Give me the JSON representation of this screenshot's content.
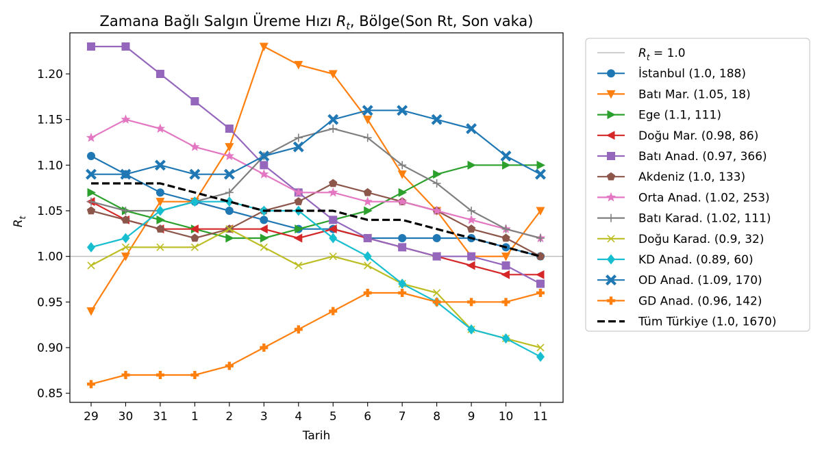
{
  "chart_data": {
    "type": "line",
    "title": "Zamana Bağlı Salgın Üreme Hızı",
    "title_rt": "R",
    "title_rt_sub": "t",
    "title_suffix": ", Bölge(Son Rt, Son vaka)",
    "xlabel": "Tarih",
    "ylabel": "R",
    "ylabel_sub": "t",
    "categories": [
      "29",
      "30",
      "31",
      "1",
      "2",
      "3",
      "4",
      "5",
      "6",
      "7",
      "8",
      "9",
      "10",
      "11"
    ],
    "ylim": [
      0.84,
      1.245
    ],
    "yticks": [
      0.85,
      0.9,
      0.95,
      1.0,
      1.05,
      1.1,
      1.15,
      1.2
    ],
    "ytick_labels": [
      "0.85",
      "0.90",
      "0.95",
      "1.00",
      "1.05",
      "1.10",
      "1.15",
      "1.20"
    ],
    "reference_line": {
      "label": "R",
      "label_sub": "t",
      "label_suffix": " = 1.0",
      "value": 1.0,
      "color": "#bfbfbf"
    },
    "series": [
      {
        "name": "İstanbul (1.0, 188)",
        "color": "#1f77b4",
        "marker": "circle",
        "values": [
          1.11,
          1.09,
          1.07,
          1.06,
          1.05,
          1.04,
          1.03,
          1.03,
          1.02,
          1.02,
          1.02,
          1.02,
          1.01,
          1.0
        ]
      },
      {
        "name": "Batı Mar. (1.05, 18)",
        "color": "#ff7f0e",
        "marker": "triangle-down",
        "values": [
          0.94,
          1.0,
          1.06,
          1.06,
          1.12,
          1.23,
          1.21,
          1.2,
          1.15,
          1.09,
          1.05,
          1.0,
          1.0,
          1.05
        ]
      },
      {
        "name": "Ege (1.1, 111)",
        "color": "#2ca02c",
        "marker": "triangle-right",
        "values": [
          1.07,
          1.05,
          1.04,
          1.03,
          1.02,
          1.02,
          1.03,
          1.04,
          1.05,
          1.07,
          1.09,
          1.1,
          1.1,
          1.1
        ]
      },
      {
        "name": "Doğu Mar. (0.98, 86)",
        "color": "#d62728",
        "marker": "triangle-left",
        "values": [
          1.06,
          1.04,
          1.03,
          1.03,
          1.03,
          1.03,
          1.02,
          1.03,
          1.02,
          1.01,
          1.0,
          0.99,
          0.98,
          0.98
        ]
      },
      {
        "name": "Batı Anad. (0.97, 366)",
        "color": "#9467bd",
        "marker": "square",
        "values": [
          1.23,
          1.23,
          1.2,
          1.17,
          1.14,
          1.1,
          1.07,
          1.04,
          1.02,
          1.01,
          1.0,
          1.0,
          0.99,
          0.97
        ]
      },
      {
        "name": "Akdeniz (1.0, 133)",
        "color": "#8c564b",
        "marker": "pentagon",
        "values": [
          1.05,
          1.04,
          1.03,
          1.02,
          1.03,
          1.05,
          1.06,
          1.08,
          1.07,
          1.06,
          1.05,
          1.03,
          1.02,
          1.0
        ]
      },
      {
        "name": "Orta Anad. (1.02, 253)",
        "color": "#e377c2",
        "marker": "star",
        "values": [
          1.13,
          1.15,
          1.14,
          1.12,
          1.11,
          1.09,
          1.07,
          1.07,
          1.06,
          1.06,
          1.05,
          1.04,
          1.03,
          1.02
        ]
      },
      {
        "name": "Batı Karad. (1.02, 111)",
        "color": "#7f7f7f",
        "marker": "plus",
        "values": [
          1.06,
          1.05,
          1.05,
          1.06,
          1.07,
          1.11,
          1.13,
          1.14,
          1.13,
          1.1,
          1.08,
          1.05,
          1.03,
          1.02
        ]
      },
      {
        "name": "Doğu Karad. (0.9, 32)",
        "color": "#bcbd22",
        "marker": "x",
        "values": [
          0.99,
          1.01,
          1.01,
          1.01,
          1.03,
          1.01,
          0.99,
          1.0,
          0.99,
          0.97,
          0.96,
          0.92,
          0.91,
          0.9
        ]
      },
      {
        "name": "KD Anad. (0.89, 60)",
        "color": "#17becf",
        "marker": "diamond",
        "values": [
          1.01,
          1.02,
          1.05,
          1.06,
          1.06,
          1.05,
          1.05,
          1.02,
          1.0,
          0.97,
          0.95,
          0.92,
          0.91,
          0.89
        ]
      },
      {
        "name": "OD Anad. (1.09, 170)",
        "color": "#1f77b4",
        "marker": "x-filled",
        "values": [
          1.09,
          1.09,
          1.1,
          1.09,
          1.09,
          1.11,
          1.12,
          1.15,
          1.16,
          1.16,
          1.15,
          1.14,
          1.11,
          1.09
        ]
      },
      {
        "name": "GD Anad. (0.96, 142)",
        "color": "#ff7f0e",
        "marker": "plus-filled",
        "values": [
          0.86,
          0.87,
          0.87,
          0.87,
          0.88,
          0.9,
          0.92,
          0.94,
          0.96,
          0.96,
          0.95,
          0.95,
          0.95,
          0.96
        ]
      },
      {
        "name": "Tüm Türkiye (1.0, 1670)",
        "color": "#000000",
        "marker": "none",
        "dashed": true,
        "values": [
          1.08,
          1.08,
          1.08,
          1.07,
          1.06,
          1.05,
          1.05,
          1.05,
          1.04,
          1.04,
          1.03,
          1.02,
          1.01,
          1.0
        ]
      }
    ]
  }
}
